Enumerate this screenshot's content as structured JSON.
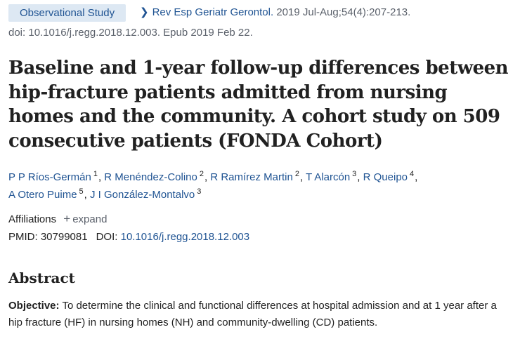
{
  "header": {
    "article_type": "Observational Study",
    "journal": "Rev Esp Geriatr Gerontol.",
    "citation": "2019 Jul-Aug;54(4):207-213.",
    "doi_line": "doi: 10.1016/j.regg.2018.12.003. Epub 2019 Feb 22."
  },
  "title": "Baseline and 1-year follow-up differences between hip-fracture patients admitted from nursing homes and the community. A cohort study on 509 consecutive patients (FONDA Cohort)",
  "authors": [
    {
      "name": "P P Ríos-Germán",
      "aff": "1"
    },
    {
      "name": "R Menéndez-Colino",
      "aff": "2"
    },
    {
      "name": "R Ramírez Martin",
      "aff": "2"
    },
    {
      "name": "T Alarcón",
      "aff": "3"
    },
    {
      "name": "R Queipo",
      "aff": "4"
    },
    {
      "name": "A Otero Puime",
      "aff": "5"
    },
    {
      "name": "J I González-Montalvo",
      "aff": "3"
    }
  ],
  "affiliations": {
    "label": "Affiliations",
    "expand_label": "expand"
  },
  "identifiers": {
    "pmid_label": "PMID:",
    "pmid": "30799081",
    "doi_label": "DOI:",
    "doi": "10.1016/j.regg.2018.12.003"
  },
  "abstract": {
    "heading": "Abstract",
    "objective_label": "Objective:",
    "objective_text": "To determine the clinical and functional differences at hospital admission and at 1 year after a hip fracture (HF) in nursing homes (NH) and community-dwelling (CD) patients."
  }
}
